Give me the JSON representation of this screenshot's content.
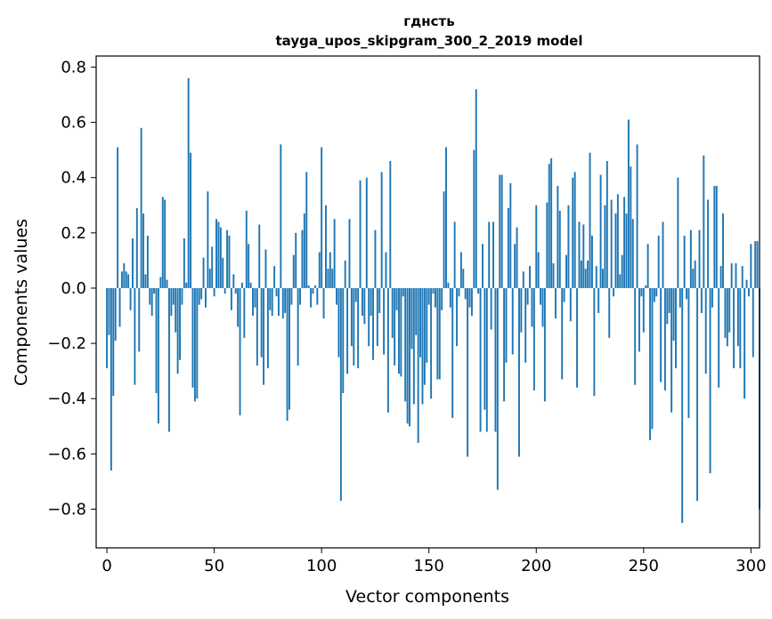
{
  "chart_data": {
    "type": "bar",
    "title": "гднсть",
    "subtitle": "tayga_upos_skipgram_300_2_2019 model",
    "xlabel": "Vector components",
    "ylabel": "Components values",
    "xlim": [
      -5,
      304
    ],
    "ylim": [
      -0.94,
      0.84
    ],
    "xticks": [
      0,
      50,
      100,
      150,
      200,
      250,
      300
    ],
    "yticks": [
      -0.8,
      -0.6,
      -0.4,
      -0.2,
      0.0,
      0.2,
      0.4,
      0.6,
      0.8
    ],
    "ytick_labels": [
      "−0.8",
      "−0.6",
      "−0.4",
      "−0.2",
      "0.0",
      "0.2",
      "0.4",
      "0.6",
      "0.8"
    ],
    "xtick_labels": [
      "0",
      "50",
      "100",
      "150",
      "200",
      "250",
      "300"
    ],
    "color": "#1f77b4",
    "values": [
      -0.29,
      -0.17,
      -0.66,
      -0.39,
      -0.19,
      0.51,
      -0.14,
      0.06,
      0.09,
      0.06,
      0.05,
      -0.08,
      0.18,
      -0.35,
      0.29,
      -0.23,
      0.58,
      0.27,
      0.05,
      0.19,
      -0.06,
      -0.1,
      -0.02,
      -0.38,
      -0.49,
      0.04,
      0.33,
      0.32,
      0.03,
      -0.52,
      -0.1,
      -0.06,
      -0.16,
      -0.31,
      -0.26,
      -0.06,
      0.18,
      0.02,
      0.76,
      0.49,
      -0.36,
      -0.41,
      -0.4,
      -0.06,
      -0.04,
      0.11,
      -0.07,
      0.35,
      0.07,
      0.15,
      -0.03,
      0.25,
      0.24,
      0.22,
      0.11,
      -0.02,
      0.21,
      0.19,
      -0.08,
      0.05,
      -0.02,
      -0.14,
      -0.46,
      0.02,
      -0.18,
      0.28,
      0.16,
      0.02,
      -0.1,
      -0.07,
      -0.28,
      0.23,
      -0.25,
      -0.35,
      0.14,
      -0.29,
      -0.08,
      -0.1,
      0.08,
      -0.03,
      -0.1,
      0.52,
      -0.11,
      -0.09,
      -0.48,
      -0.44,
      -0.06,
      0.12,
      0.2,
      -0.28,
      -0.06,
      0.21,
      0.27,
      0.42,
      0.01,
      -0.07,
      -0.02,
      0.01,
      -0.06,
      0.13,
      0.51,
      -0.11,
      0.3,
      0.07,
      0.13,
      0.07,
      0.25,
      -0.06,
      -0.25,
      -0.77,
      -0.38,
      0.1,
      -0.31,
      0.25,
      -0.21,
      -0.28,
      -0.05,
      -0.29,
      0.39,
      -0.1,
      -0.13,
      0.4,
      -0.21,
      -0.1,
      -0.26,
      0.21,
      -0.21,
      -0.09,
      0.42,
      -0.24,
      0.13,
      -0.45,
      0.46,
      -0.18,
      -0.28,
      -0.08,
      -0.31,
      -0.32,
      -0.03,
      -0.41,
      -0.49,
      -0.5,
      -0.22,
      -0.42,
      -0.17,
      -0.56,
      -0.25,
      -0.42,
      -0.35,
      -0.27,
      -0.06,
      -0.4,
      -0.02,
      -0.07,
      -0.33,
      -0.33,
      -0.08,
      0.35,
      0.51,
      0.02,
      -0.07,
      -0.47,
      0.24,
      -0.21,
      -0.03,
      0.13,
      0.07,
      -0.04,
      -0.61,
      -0.07,
      -0.1,
      0.5,
      0.72,
      -0.02,
      -0.52,
      0.16,
      -0.44,
      -0.52,
      0.24,
      -0.15,
      0.24,
      -0.52,
      -0.73,
      0.41,
      0.41,
      -0.41,
      -0.27,
      0.29,
      0.38,
      -0.24,
      0.16,
      0.22,
      -0.61,
      -0.16,
      0.06,
      -0.27,
      -0.06,
      0.08,
      -0.14,
      -0.37,
      0.3,
      0.13,
      -0.06,
      -0.14,
      -0.41,
      0.31,
      0.45,
      0.47,
      0.09,
      -0.11,
      0.37,
      0.28,
      -0.33,
      -0.05,
      0.12,
      0.3,
      -0.12,
      0.4,
      0.42,
      -0.36,
      0.24,
      0.1,
      0.23,
      0.07,
      0.1,
      0.49,
      0.19,
      -0.39,
      0.08,
      -0.09,
      0.41,
      0.07,
      0.3,
      0.46,
      -0.18,
      0.32,
      -0.03,
      0.27,
      0.34,
      0.05,
      0.12,
      0.33,
      0.27,
      0.61,
      0.44,
      0.25,
      -0.35,
      0.52,
      -0.23,
      -0.03,
      -0.16,
      0.01,
      0.16,
      -0.55,
      -0.51,
      -0.05,
      -0.03,
      0.19,
      -0.34,
      0.24,
      -0.37,
      -0.13,
      -0.09,
      -0.45,
      -0.19,
      -0.29,
      0.4,
      -0.07,
      -0.85,
      0.19,
      -0.04,
      -0.47,
      0.21,
      0.07,
      0.1,
      -0.77,
      0.21,
      -0.09,
      0.48,
      -0.31,
      0.32,
      -0.67,
      -0.07,
      0.37,
      0.37,
      -0.36,
      0.08,
      0.27,
      -0.18,
      -0.21,
      -0.16,
      0.09,
      -0.29,
      0.09,
      -0.21,
      -0.29,
      0.08,
      -0.4,
      0.03,
      -0.03,
      0.16,
      -0.25,
      0.17,
      0.17,
      -0.8
    ]
  }
}
